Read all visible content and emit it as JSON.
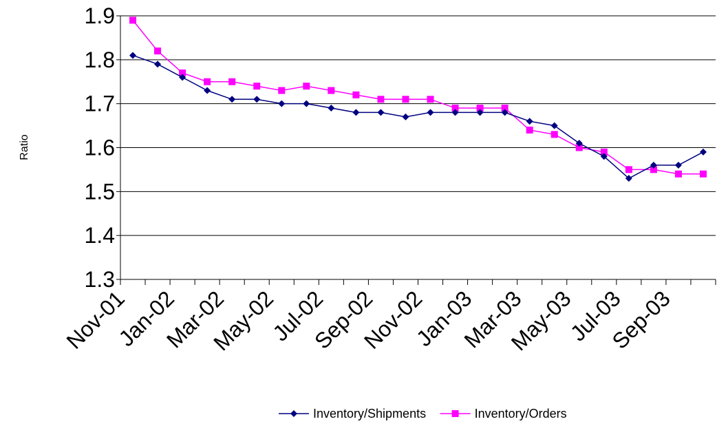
{
  "chart_data": {
    "type": "line",
    "ylabel": "Ratio",
    "ylim": [
      1.3,
      1.9
    ],
    "yticks": [
      "1.3",
      "1.4",
      "1.5",
      "1.6",
      "1.7",
      "1.8",
      "1.9"
    ],
    "ytick_values": [
      1.3,
      1.4,
      1.5,
      1.6,
      1.7,
      1.8,
      1.9
    ],
    "grid": "horizontal",
    "legend_position": "bottom",
    "x_tick_labels": [
      "Nov-01",
      "Jan-02",
      "Mar-02",
      "May-02",
      "Jul-02",
      "Sep-02",
      "Nov-02",
      "Jan-03",
      "Mar-03",
      "May-03",
      "Jul-03",
      "Sep-03"
    ],
    "categories": [
      "Nov-01",
      "Dec-01",
      "Jan-02",
      "Feb-02",
      "Mar-02",
      "Apr-02",
      "May-02",
      "Jun-02",
      "Jul-02",
      "Aug-02",
      "Sep-02",
      "Oct-02",
      "Nov-02",
      "Dec-02",
      "Jan-03",
      "Feb-03",
      "Mar-03",
      "Apr-03",
      "May-03",
      "Jun-03",
      "Jul-03",
      "Aug-03",
      "Sep-03",
      "Oct-03"
    ],
    "series": [
      {
        "name": "Inventory/Shipments",
        "color": "#000080",
        "marker": "diamond",
        "values": [
          1.81,
          1.79,
          1.76,
          1.73,
          1.71,
          1.71,
          1.7,
          1.7,
          1.69,
          1.68,
          1.68,
          1.67,
          1.68,
          1.68,
          1.68,
          1.68,
          1.66,
          1.65,
          1.61,
          1.58,
          1.53,
          1.56,
          1.56,
          1.59
        ]
      },
      {
        "name": "Inventory/Orders",
        "color": "#ff00ff",
        "marker": "square",
        "values": [
          1.89,
          1.82,
          1.77,
          1.75,
          1.75,
          1.74,
          1.73,
          1.74,
          1.73,
          1.72,
          1.71,
          1.71,
          1.71,
          1.69,
          1.69,
          1.69,
          1.64,
          1.63,
          1.6,
          1.59,
          1.55,
          1.55,
          1.54,
          1.54
        ]
      }
    ]
  }
}
